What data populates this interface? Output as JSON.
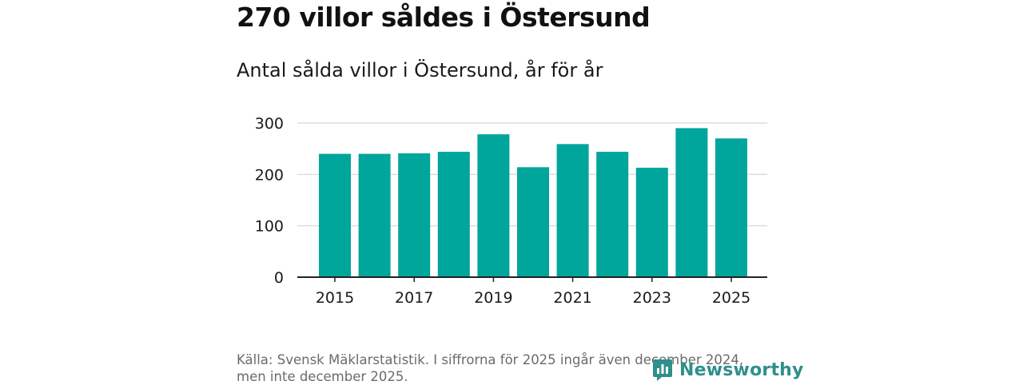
{
  "colors": {
    "bar": "#00a59b",
    "grid": "#dddddd",
    "axis": "#222222",
    "tick_text": "#1a1a1a",
    "source_text": "#6b6b6b",
    "brand": "#2e8f8b"
  },
  "title": "270 villor såldes i Östersund",
  "subtitle": "Antal sålda villor i Östersund, år för år",
  "chart_data": {
    "type": "bar",
    "title": "270 villor såldes i Östersund",
    "subtitle": "Antal sålda villor i Östersund, år för år",
    "xlabel": "",
    "ylabel": "",
    "categories": [
      "2015",
      "2016",
      "2017",
      "2018",
      "2019",
      "2020",
      "2021",
      "2022",
      "2023",
      "2024",
      "2025"
    ],
    "values": [
      240,
      240,
      241,
      244,
      278,
      214,
      259,
      244,
      213,
      290,
      270
    ],
    "ylim": [
      0,
      300
    ],
    "yticks": [
      "0",
      "100",
      "200",
      "300"
    ],
    "yticks_values": [
      0,
      100,
      200,
      300
    ],
    "xticks": [
      "2015",
      "2017",
      "2019",
      "2021",
      "2023",
      "2025"
    ],
    "grid": true
  },
  "footer": {
    "source_line1": "Källa: Svensk Mäklarstatistik. I siffrorna för 2025 ingår även december 2024,",
    "source_line2": "men inte december 2025."
  },
  "logo": {
    "text": "Newsworthy",
    "icon": "newsworthy-logo-icon"
  }
}
